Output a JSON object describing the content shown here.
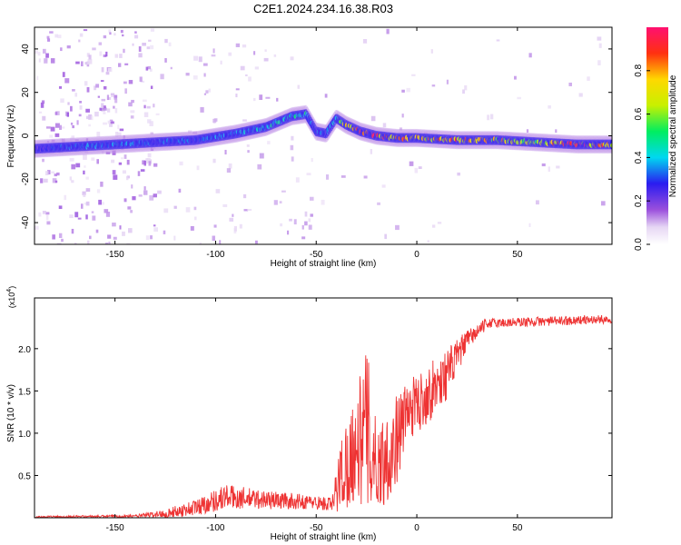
{
  "title": "C2E1.2024.234.16.38.R03",
  "chart_data": [
    {
      "type": "heatmap",
      "xlabel": "Height of straight line (km)",
      "ylabel": "Frequency (Hz)",
      "xlim": [
        -190,
        97
      ],
      "ylim": [
        -50,
        50
      ],
      "xticks": [
        -150,
        -100,
        -50,
        0,
        50
      ],
      "xtick_labels": [
        "-150",
        "-100",
        "-50",
        "0",
        "50"
      ],
      "yticks": [
        -40,
        -20,
        0,
        20,
        40
      ],
      "ytick_labels": [
        "-40",
        "-20",
        "0",
        "20",
        "40"
      ],
      "colorbar": {
        "label": "Normalized spectral amplitude",
        "range": [
          0,
          1
        ],
        "ticks": [
          0.0,
          0.2,
          0.4,
          0.6,
          0.8
        ],
        "tick_labels": [
          "0.0",
          "0.2",
          "0.4",
          "0.6",
          "0.8"
        ]
      },
      "ridge": [
        {
          "x": -190,
          "y": -6,
          "a": 0.2
        },
        {
          "x": -170,
          "y": -5,
          "a": 0.35
        },
        {
          "x": -150,
          "y": -4,
          "a": 0.35
        },
        {
          "x": -130,
          "y": -3,
          "a": 0.3
        },
        {
          "x": -110,
          "y": -2,
          "a": 0.3
        },
        {
          "x": -90,
          "y": 1,
          "a": 0.35
        },
        {
          "x": -75,
          "y": 4,
          "a": 0.4
        },
        {
          "x": -62,
          "y": 9,
          "a": 0.45
        },
        {
          "x": -55,
          "y": 10,
          "a": 0.45
        },
        {
          "x": -50,
          "y": 2,
          "a": 0.3
        },
        {
          "x": -45,
          "y": 1,
          "a": 0.3
        },
        {
          "x": -40,
          "y": 8,
          "a": 0.4
        },
        {
          "x": -35,
          "y": 5,
          "a": 0.7
        },
        {
          "x": -28,
          "y": 2,
          "a": 0.85
        },
        {
          "x": -20,
          "y": 0,
          "a": 0.85
        },
        {
          "x": -10,
          "y": -1,
          "a": 0.8
        },
        {
          "x": 0,
          "y": -1,
          "a": 0.75
        },
        {
          "x": 20,
          "y": -2,
          "a": 0.8
        },
        {
          "x": 40,
          "y": -2,
          "a": 0.7
        },
        {
          "x": 60,
          "y": -3,
          "a": 0.65
        },
        {
          "x": 80,
          "y": -4,
          "a": 0.9
        },
        {
          "x": 97,
          "y": -4,
          "a": 0.7
        }
      ]
    },
    {
      "type": "line",
      "xlabel": "Height of straight line (km)",
      "ylabel": "SNR (10 * v/v)",
      "multiplier": "(x10⁴)",
      "multiplier_base": "(x10",
      "multiplier_exp": "4",
      "multiplier_close": ")",
      "xlim": [
        -190,
        97
      ],
      "ylim": [
        0,
        2.6
      ],
      "xticks": [
        -150,
        -100,
        -50,
        0,
        50
      ],
      "xtick_labels": [
        "-150",
        "-100",
        "-50",
        "0",
        "50"
      ],
      "yticks": [
        0.5,
        1.0,
        1.5,
        2.0
      ],
      "ytick_labels": [
        "0.5",
        "1.0",
        "1.5",
        "2.0"
      ],
      "series": [
        {
          "name": "SNR",
          "color": "#ee3333",
          "envelope": [
            {
              "x": -190,
              "mean": 0.01,
              "amp": 0.01
            },
            {
              "x": -140,
              "mean": 0.02,
              "amp": 0.015
            },
            {
              "x": -125,
              "mean": 0.05,
              "amp": 0.05
            },
            {
              "x": -110,
              "mean": 0.12,
              "amp": 0.1
            },
            {
              "x": -95,
              "mean": 0.25,
              "amp": 0.15
            },
            {
              "x": -80,
              "mean": 0.22,
              "amp": 0.12
            },
            {
              "x": -65,
              "mean": 0.2,
              "amp": 0.1
            },
            {
              "x": -50,
              "mean": 0.18,
              "amp": 0.08
            },
            {
              "x": -42,
              "mean": 0.15,
              "amp": 0.1
            },
            {
              "x": -38,
              "mean": 0.5,
              "amp": 0.45
            },
            {
              "x": -30,
              "mean": 0.85,
              "amp": 0.65
            },
            {
              "x": -25,
              "mean": 1.05,
              "amp": 1.0
            },
            {
              "x": -20,
              "mean": 0.6,
              "amp": 0.5
            },
            {
              "x": -12,
              "mean": 0.8,
              "amp": 0.6
            },
            {
              "x": -5,
              "mean": 1.25,
              "amp": 0.35
            },
            {
              "x": 5,
              "mean": 1.45,
              "amp": 0.35
            },
            {
              "x": 15,
              "mean": 1.7,
              "amp": 0.3
            },
            {
              "x": 25,
              "mean": 2.1,
              "amp": 0.12
            },
            {
              "x": 35,
              "mean": 2.3,
              "amp": 0.06
            },
            {
              "x": 97,
              "mean": 2.35,
              "amp": 0.05
            }
          ]
        }
      ]
    }
  ]
}
